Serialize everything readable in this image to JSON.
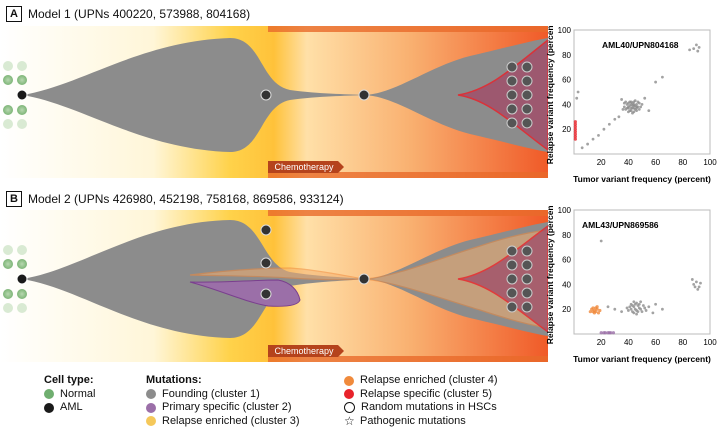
{
  "panels": [
    {
      "letter": "A",
      "title": "Model 1 (UPNs 400220, 573988, 804168)",
      "band_label": "Chemotherapy"
    },
    {
      "letter": "B",
      "title": "Model 2 (UPNs 426980, 452198, 758168, 869586, 933124)",
      "band_label": "Chemotherapy"
    }
  ],
  "colors": {
    "normal": "#6fae6f",
    "aml": "#1a1a1a",
    "founding": "#8c8c8c",
    "primary_specific": "#9b6fa8",
    "relapse_enriched_3": "#f5c85a",
    "relapse_enriched_4": "#f08a3c",
    "relapse_specific_5": "#e8232b",
    "chemo_band": "#b5431c"
  },
  "chart_data": [
    {
      "type": "scatter",
      "title": "AML40/UPN804168",
      "xlabel": "Tumor variant frequency (percent)",
      "ylabel": "Relapse variant frequency (percent)",
      "xlim": [
        0,
        100
      ],
      "ylim": [
        0,
        100
      ],
      "xticks": [
        "20",
        "40",
        "60",
        "80",
        "100"
      ],
      "yticks": [
        "20",
        "40",
        "60",
        "80",
        "100"
      ],
      "series": [
        {
          "cluster": "founding",
          "points": [
            [
              38,
              36
            ],
            [
              40,
              38
            ],
            [
              42,
              37
            ],
            [
              44,
              39
            ],
            [
              46,
              40
            ],
            [
              43,
              41
            ],
            [
              41,
              35
            ],
            [
              45,
              36
            ],
            [
              47,
              38
            ],
            [
              39,
              40
            ],
            [
              42,
              42
            ],
            [
              44,
              34
            ],
            [
              48,
              41
            ],
            [
              37,
              38
            ],
            [
              43,
              37
            ],
            [
              46,
              35
            ],
            [
              40,
              41
            ],
            [
              45,
              43
            ],
            [
              41,
              39
            ],
            [
              44,
              37
            ],
            [
              49,
              38
            ],
            [
              36,
              36
            ],
            [
              42,
              40
            ],
            [
              47,
              42
            ],
            [
              43,
              33
            ],
            [
              50,
              40
            ],
            [
              38,
              42
            ],
            [
              40,
              34
            ],
            [
              46,
              38
            ],
            [
              44,
              42
            ],
            [
              39,
              37
            ],
            [
              41,
              42
            ],
            [
              45,
              39
            ],
            [
              43,
              39
            ],
            [
              48,
              36
            ],
            [
              42,
              35
            ],
            [
              40,
              37
            ],
            [
              44,
              40
            ],
            [
              46,
              37
            ],
            [
              37,
              41
            ],
            [
              52,
              45
            ],
            [
              33,
              30
            ],
            [
              30,
              28
            ],
            [
              26,
              24
            ],
            [
              22,
              20
            ],
            [
              18,
              15
            ],
            [
              14,
              12
            ],
            [
              10,
              8
            ],
            [
              6,
              5
            ],
            [
              3,
              50
            ],
            [
              2,
              45
            ],
            [
              60,
              58
            ],
            [
              65,
              62
            ],
            [
              88,
              85
            ],
            [
              90,
              88
            ],
            [
              92,
              86
            ],
            [
              85,
              84
            ],
            [
              91,
              83
            ],
            [
              55,
              35
            ],
            [
              35,
              44
            ]
          ]
        },
        {
          "cluster": "relapse_specific",
          "points": [
            [
              1,
              22
            ],
            [
              1,
              20
            ],
            [
              1,
              18
            ],
            [
              1,
              16
            ],
            [
              1,
              24
            ],
            [
              1,
              14
            ],
            [
              1,
              12
            ],
            [
              1,
              26
            ]
          ]
        }
      ]
    },
    {
      "type": "scatter",
      "title": "AML43/UPN869586",
      "xlabel": "Tumor variant frequency (percent)",
      "ylabel": "Relapse variant frequency (percent)",
      "xlim": [
        0,
        100
      ],
      "ylim": [
        0,
        100
      ],
      "xticks": [
        "20",
        "40",
        "60",
        "80",
        "100"
      ],
      "yticks": [
        "20",
        "40",
        "60",
        "80",
        "100"
      ],
      "series": [
        {
          "cluster": "founding",
          "points": [
            [
              42,
              20
            ],
            [
              44,
              22
            ],
            [
              46,
              19
            ],
            [
              48,
              21
            ],
            [
              45,
              24
            ],
            [
              43,
              18
            ],
            [
              47,
              23
            ],
            [
              49,
              20
            ],
            [
              41,
              22
            ],
            [
              50,
              18
            ],
            [
              44,
              17
            ],
            [
              46,
              25
            ],
            [
              40,
              19
            ],
            [
              48,
              24
            ],
            [
              52,
              21
            ],
            [
              43,
              23
            ],
            [
              45,
              20
            ],
            [
              47,
              18
            ],
            [
              42,
              24
            ],
            [
              51,
              23
            ],
            [
              39,
              21
            ],
            [
              46,
              16
            ],
            [
              44,
              26
            ],
            [
              53,
              19
            ],
            [
              49,
              26
            ],
            [
              88,
              40
            ],
            [
              90,
              42
            ],
            [
              92,
              38
            ],
            [
              87,
              44
            ],
            [
              91,
              36
            ],
            [
              93,
              41
            ],
            [
              89,
              38
            ],
            [
              25,
              22
            ],
            [
              30,
              20
            ],
            [
              35,
              18
            ],
            [
              55,
              22
            ],
            [
              60,
              24
            ],
            [
              20,
              75
            ],
            [
              65,
              20
            ],
            [
              58,
              17
            ]
          ]
        },
        {
          "cluster": "relapse_enriched_4",
          "points": [
            [
              15,
              19
            ],
            [
              17,
              20
            ],
            [
              14,
              18
            ],
            [
              18,
              17
            ],
            [
              16,
              21
            ],
            [
              13,
              20
            ],
            [
              19,
              19
            ],
            [
              15,
              17
            ],
            [
              12,
              18
            ],
            [
              17,
              22
            ],
            [
              16,
              18
            ],
            [
              14,
              21
            ]
          ]
        },
        {
          "cluster": "primary_specific",
          "points": [
            [
              20,
              1
            ],
            [
              23,
              1
            ],
            [
              25,
              1
            ],
            [
              27,
              1
            ],
            [
              29,
              1
            ],
            [
              22,
              1
            ],
            [
              26,
              1
            ]
          ]
        }
      ]
    }
  ],
  "legend": {
    "cell_type_header": "Cell type:",
    "cell_types": [
      {
        "label": "Normal",
        "color": "#6fae6f"
      },
      {
        "label": "AML",
        "color": "#1a1a1a"
      }
    ],
    "mutations_header": "Mutations:",
    "mutations_col1": [
      {
        "label": "Founding (cluster 1)",
        "color": "#8c8c8c"
      },
      {
        "label": "Primary specific (cluster 2)",
        "color": "#9b6fa8"
      },
      {
        "label": "Relapse enriched (cluster 3)",
        "color": "#f5c85a"
      }
    ],
    "mutations_col2": [
      {
        "label": "Relapse enriched (cluster 4)",
        "color": "#f08a3c",
        "marker": "dot"
      },
      {
        "label": "Relapse specific (cluster 5)",
        "color": "#e8232b",
        "marker": "dot"
      },
      {
        "label": "Random mutations in HSCs",
        "marker": "ring"
      },
      {
        "label": "Pathogenic mutations",
        "marker": "star",
        "icon": "star-outline-icon"
      }
    ]
  }
}
